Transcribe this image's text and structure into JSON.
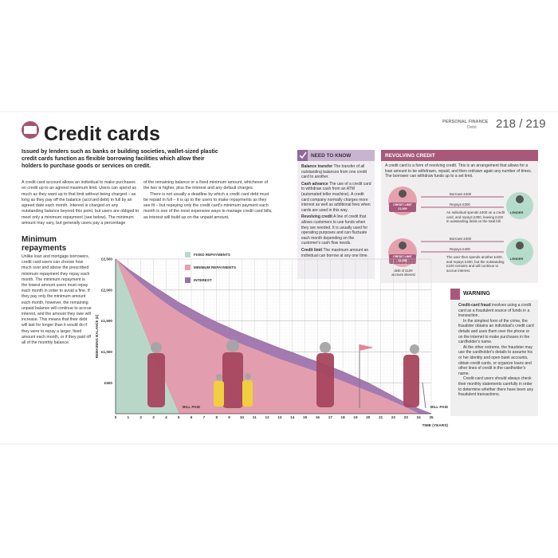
{
  "header": {
    "section": "PERSONAL FINANCE",
    "subsection": "Debt",
    "pages": "218 / 219",
    "title": "Credit cards"
  },
  "intro": "Issued by lenders such as banks or building societies, wallet-sized plastic credit cards function as flexible borrowing facilities which allow their holders to purchase goods or services on credit.",
  "body": [
    "A credit card account allows an individual to make purchases on credit up to an agreed maximum limit. Users can spend as much as they want up to that limit without being charged – as long as they pay off the balance (accrued debt) in full by an agreed date each month. Interest is charged on any outstanding balance beyond this point, but users are obliged to meet only a minimum repayment (see below). The minimum amount may vary, but generally users pay a percentage",
    "of the remaining balance or a fixed minimum amount, whichever of the two is higher, plus the interest and any default charges.",
    "There is not usually a deadline by which a credit card debt must be repaid in full – it is up to the users to make repayments as they see fit – but repaying only the credit card's minimum payment each month is one of the most expensive ways to manage credit card bills, as interest will build up on the unpaid amount."
  ],
  "need_to_know": {
    "title": "NEED TO KNOW",
    "items": [
      {
        "term": "Balance transfer",
        "text": "The transfer of all outstanding balances from one credit card to another."
      },
      {
        "term": "Cash advance",
        "text": "The use of a credit card to withdraw cash from an ATM (automated teller machine). A credit card company normally charges more interest as well as additional fees when cards are used in this way."
      },
      {
        "term": "Revolving credit",
        "text": "A line of credit that allows customers to use funds when they are needed. It is usually used for operating purposes and can fluctuate each month depending on the customer's cash flow needs."
      },
      {
        "term": "Credit limit",
        "text": "The maximum amount an individual can borrow at any one time."
      }
    ]
  },
  "revolving_credit": {
    "title": "REVOLVING CREDIT",
    "text": "A credit card is a form of revolving credit. This is an arrangement that allows for a loan amount to be withdrawn, repaid, and then redrawn again any number of times. The borrower can withdraw funds up to a set limit.",
    "limit_label": "CREDIT LIMIT",
    "limit_amount": "£1,000",
    "lender": "LENDER",
    "step1": {
      "borrow": "Borrows £400",
      "repay": "Repays £300",
      "note": "An individual spends £400 on a credit card, and repays £300, leaving £100 in outstanding debit on the total bill."
    },
    "step2": {
      "borrow": "Borrows £400",
      "repay": "Repays £400",
      "note": "The user then spends another £400, and repays £400, but the outstanding £100 remains and will continue to accrue interest.",
      "debt": "debt of £100 accrues interest"
    }
  },
  "warning": {
    "title": "WARNING",
    "lead": "Credit-card fraud",
    "paragraphs": [
      " involves using a credit card as a fraudulent source of funds in a transaction.",
      "In the simplest form of the crime, the fraudster obtains an individual's credit card details and uses them over the phone or on the internet to make purchases in the cardholder's name.",
      "At the other extreme, the fraudster may use the cardholder's details to assume his or her identity and open bank accounts, obtain credit cards, or organize loans and other lines of credit in the cardholder's name.",
      "Credit-card users should always check their monthly statements carefully in order to determine whether there have been any fraudulent transactions."
    ]
  },
  "minimum_repayments": {
    "title": "Minimum repayments",
    "text": "Unlike loan and mortgage borrowers, credit card users can choose how much over and above the prescribed minimum repayment they repay each month. The minimum repayment is the lowest amount users must repay each month in order to avoid a fine. If they pay only the minimum amount each month, however, the remaining unpaid balance will continue to accrue interest, and the amount they owe will increase. This means that their debt will last for longer than it would do if they were to repay a larger, fixed amount each month, or if they paid off all of the monthly balance."
  },
  "chart_data": {
    "type": "area",
    "xlabel": "TIME (YEARS)",
    "ylabel": "REMAINING BALANCE (£)",
    "x": [
      0,
      1,
      2,
      3,
      4,
      5,
      6,
      7,
      8,
      9,
      10,
      11,
      12,
      13,
      14,
      15,
      16,
      17,
      18,
      19,
      20,
      21,
      22,
      23,
      24,
      25
    ],
    "series": [
      {
        "name": "FIXED REPAYMENTS",
        "color": "#b5dccb",
        "values": [
          2500,
          1980,
          1460,
          950,
          470,
          0,
          null,
          null,
          null,
          null,
          null,
          null,
          null,
          null,
          null,
          null,
          null,
          null,
          null,
          null,
          null,
          null,
          null,
          null,
          null,
          null
        ]
      },
      {
        "name": "MINIMUM REPAYMENTS",
        "color": "#e7a1ae",
        "values": [
          2500,
          2290,
          2100,
          1930,
          1780,
          1640,
          1520,
          1400,
          1300,
          1200,
          1120,
          1040,
          960,
          880,
          810,
          740,
          670,
          600,
          520,
          440,
          360,
          280,
          190,
          100,
          0,
          null
        ]
      },
      {
        "name": "INTEREST",
        "color": "#9c70a9",
        "values": [
          2500,
          2340,
          2200,
          2060,
          1930,
          1800,
          1690,
          1580,
          1480,
          1390,
          1300,
          1220,
          1140,
          1060,
          990,
          910,
          840,
          760,
          680,
          590,
          500,
          390,
          280,
          170,
          80,
          0
        ]
      }
    ],
    "xlim": [
      0,
      25
    ],
    "ylim": [
      0,
      2500
    ],
    "xticks": [
      0,
      1,
      2,
      3,
      4,
      5,
      6,
      7,
      8,
      9,
      10,
      11,
      12,
      13,
      14,
      15,
      16,
      17,
      18,
      19,
      20,
      21,
      22,
      23,
      24,
      25
    ],
    "yticks": [
      {
        "value": 500,
        "label": "£500"
      },
      {
        "value": 1000,
        "label": "£1,000"
      },
      {
        "value": 1500,
        "label": "£1,500"
      },
      {
        "value": 2000,
        "label": "£2,000"
      },
      {
        "value": 2500,
        "label": "£2,500"
      }
    ],
    "grid": true,
    "annotations": [
      "BILL PAID",
      "BILL PAID"
    ]
  }
}
